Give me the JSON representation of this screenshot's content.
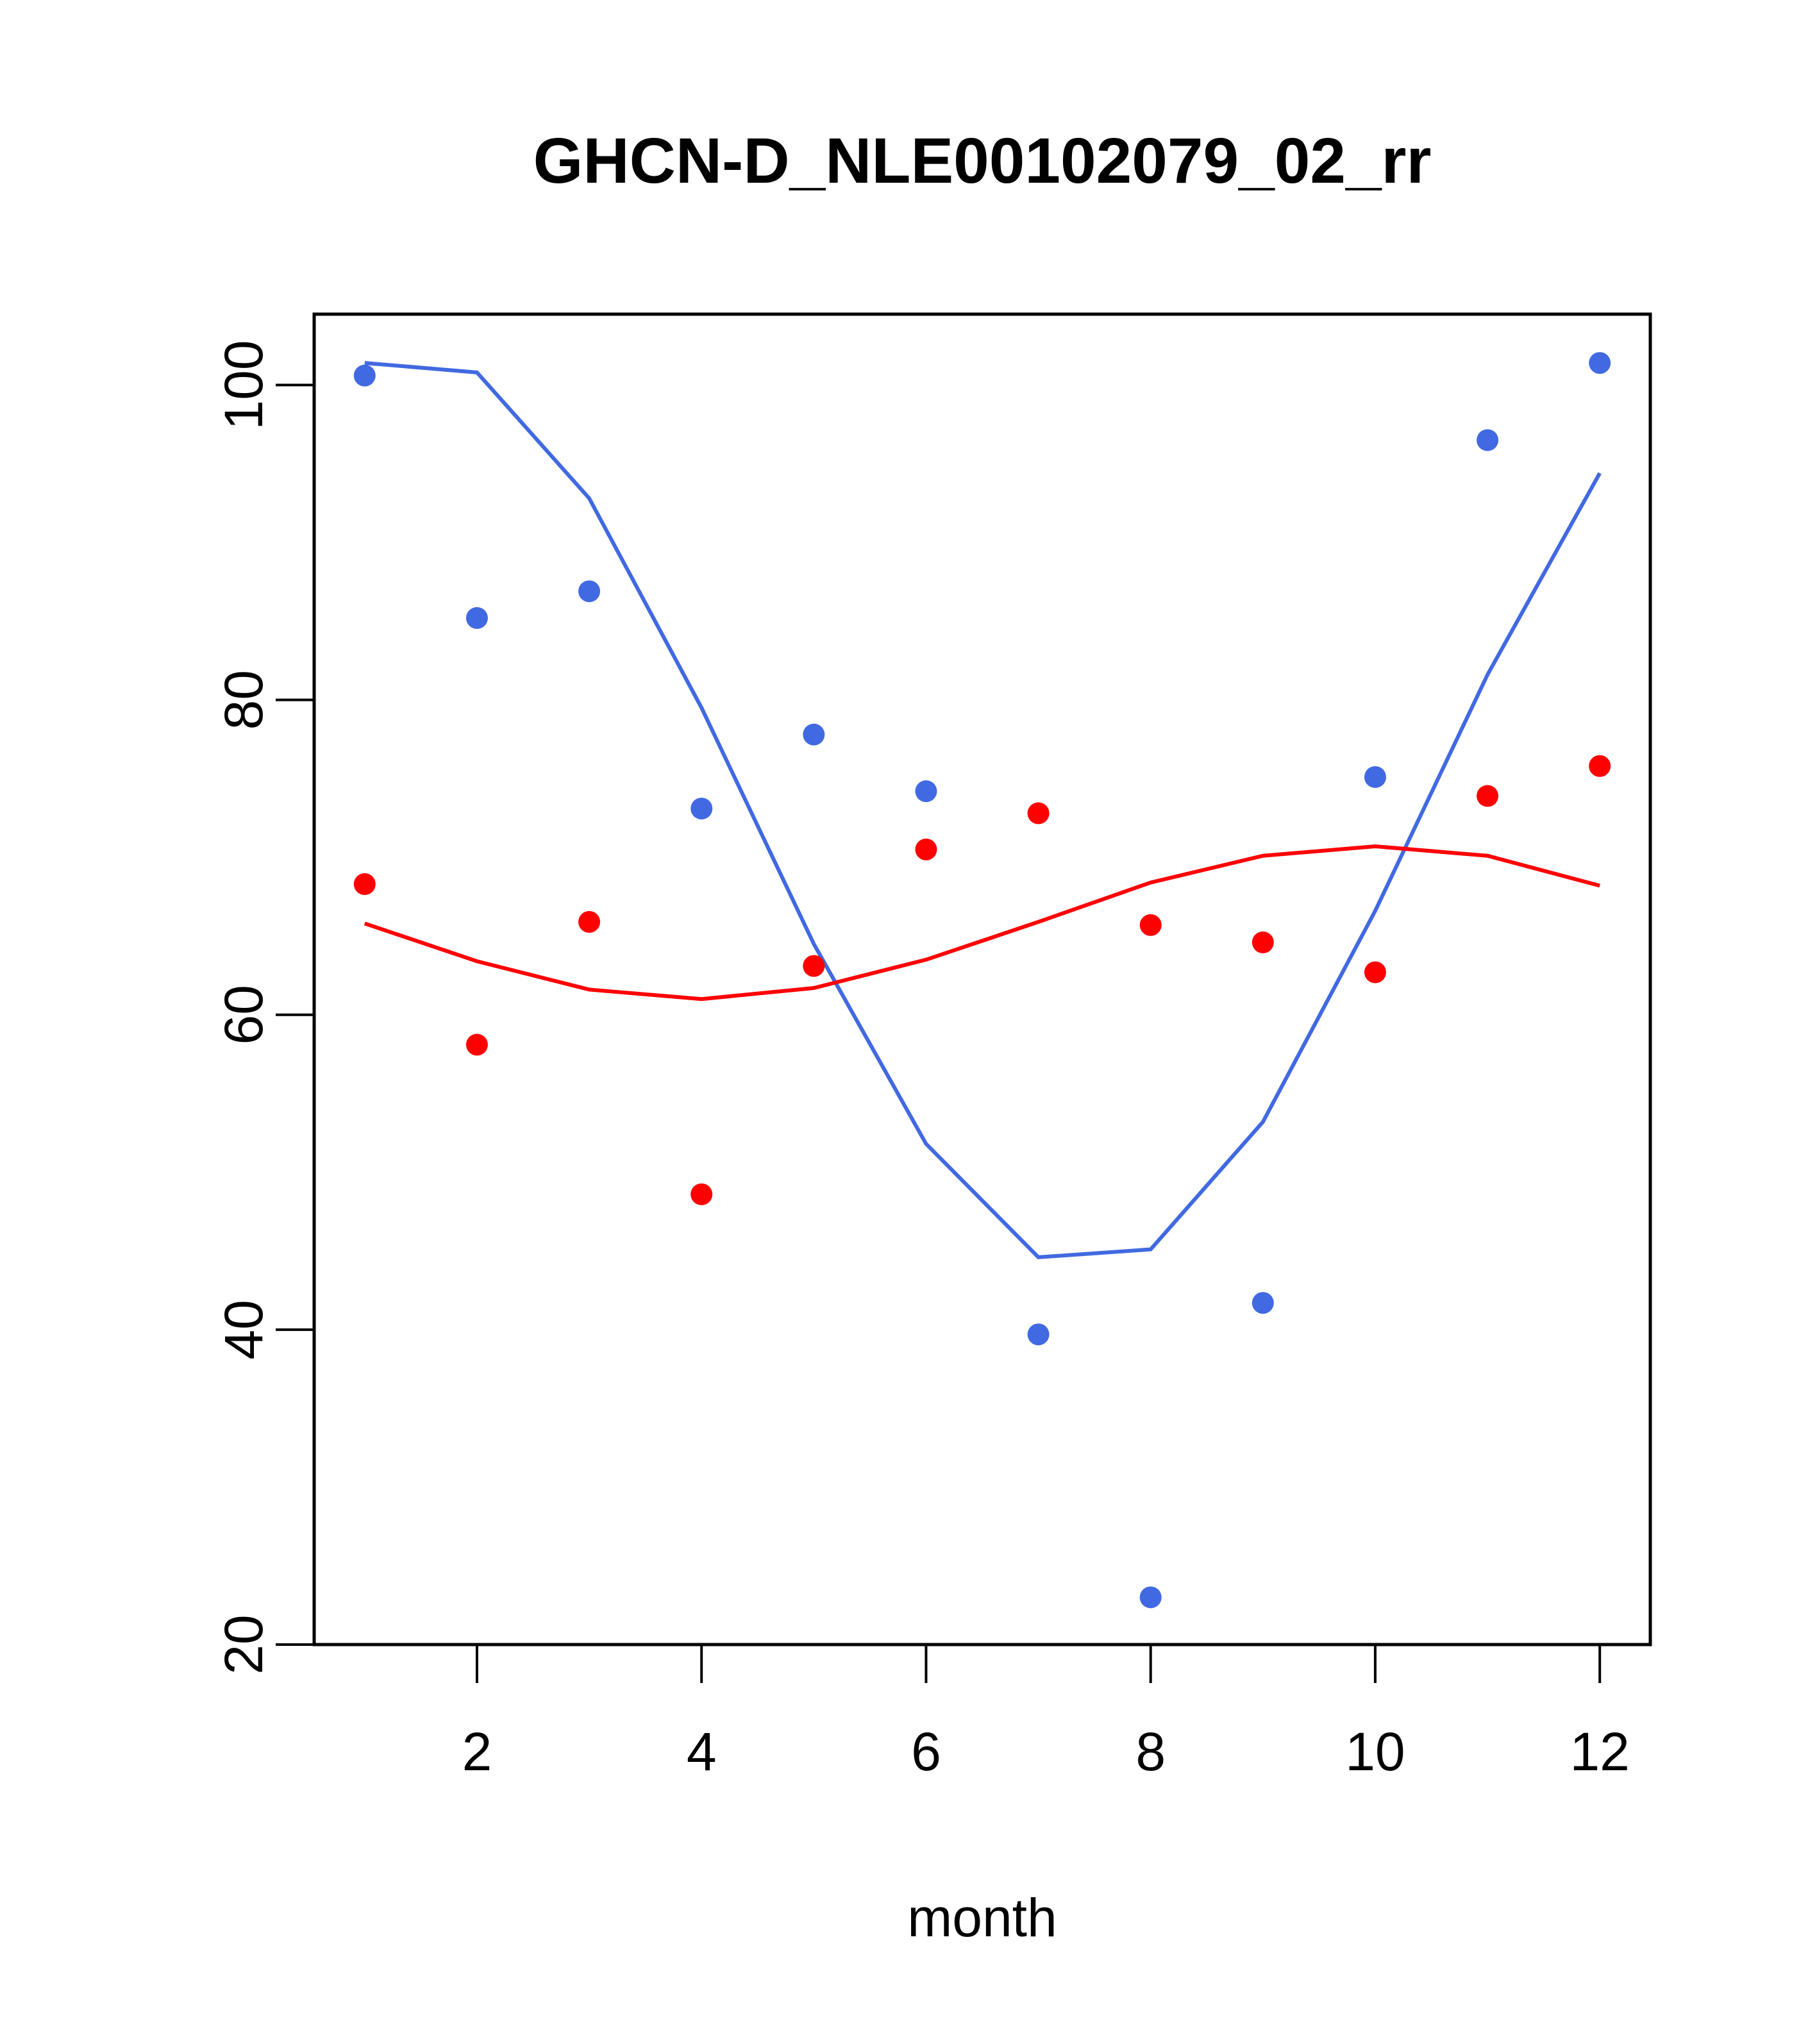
{
  "chart_data": {
    "type": "scatter",
    "title": "GHCN-D_NLE00102079_02_rr",
    "xlabel": "month",
    "ylabel": "",
    "xlim": [
      0.55,
      12.45
    ],
    "ylim": [
      20,
      104.5
    ],
    "x_ticks": [
      2,
      4,
      6,
      8,
      10,
      12
    ],
    "x_tick_labels": [
      "2",
      "4",
      "6",
      "8",
      "10",
      "12"
    ],
    "y_ticks": [
      20,
      40,
      60,
      80,
      100
    ],
    "y_tick_labels": [
      "20",
      "40",
      "60",
      "80",
      "100"
    ],
    "grid": false,
    "legend": "none",
    "x": [
      1,
      2,
      3,
      4,
      5,
      6,
      7,
      8,
      9,
      10,
      11,
      12
    ],
    "series": [
      {
        "color": "#4169e1",
        "points": [
          100.6,
          85.2,
          86.9,
          73.1,
          77.8,
          74.2,
          39.7,
          23.0,
          41.7,
          75.1,
          96.5,
          101.4
        ],
        "curve": [
          101.4,
          100.8,
          92.8,
          79.5,
          64.5,
          51.8,
          44.6,
          45.1,
          53.2,
          66.6,
          81.6,
          94.4
        ]
      },
      {
        "color": "#ff0000",
        "points": [
          68.3,
          58.1,
          65.9,
          48.6,
          63.1,
          70.5,
          72.8,
          65.7,
          64.6,
          62.7,
          73.9,
          75.8
        ],
        "curve": [
          65.8,
          63.4,
          61.6,
          61.0,
          61.7,
          63.5,
          65.9,
          68.4,
          70.1,
          70.7,
          70.1,
          68.2
        ]
      }
    ]
  }
}
